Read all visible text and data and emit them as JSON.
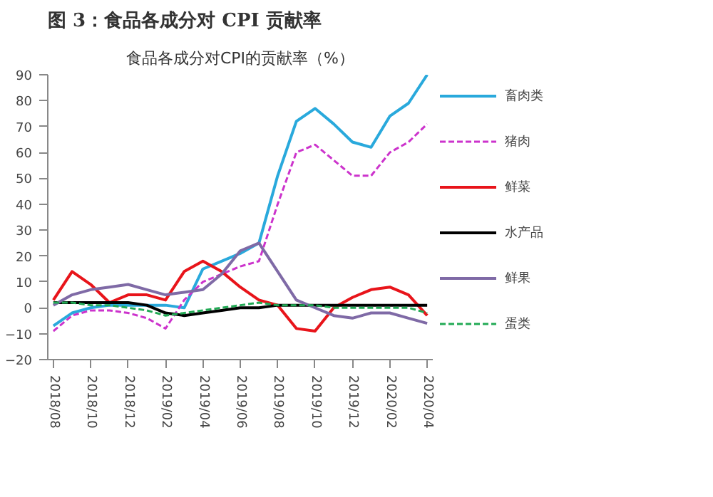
{
  "chart_data": {
    "type": "line",
    "title": "图 3：食品各成分对 CPI 贡献率",
    "subtitle": "食品各成分对CPI的贡献率（%）",
    "categories": [
      "2018/08",
      null,
      "2018/10",
      null,
      "2018/12",
      null,
      "2019/02",
      null,
      "2019/04",
      null,
      "2019/06",
      null,
      "2019/08",
      null,
      "2019/10",
      null,
      "2019/12",
      null,
      "2020/02",
      null,
      "2020/04"
    ],
    "series": [
      {
        "name": "畜肉类",
        "color": "#29a9dc",
        "values": [
          -7,
          -2,
          0,
          1,
          1,
          1,
          1,
          0,
          15,
          18,
          21,
          25,
          51,
          72,
          77,
          71,
          64,
          62,
          74,
          79,
          90
        ]
      },
      {
        "name": "猪肉",
        "color": "#cc33cc",
        "line_style": "dashed",
        "values": [
          -9,
          -3,
          -1,
          -1,
          -2,
          -4,
          -8,
          3,
          10,
          13,
          16,
          18,
          40,
          60,
          63,
          57,
          51,
          51,
          60,
          64,
          71
        ]
      },
      {
        "name": "鲜菜",
        "color": "#e8141a",
        "values": [
          3,
          14,
          9,
          2,
          5,
          5,
          3,
          14,
          18,
          14,
          8,
          3,
          1,
          -8,
          -9,
          0,
          4,
          7,
          8,
          5,
          -3
        ]
      },
      {
        "name": "水产品",
        "color": "#000000",
        "values": [
          2,
          2,
          2,
          2,
          2,
          1,
          -2,
          -3,
          -2,
          -1,
          0,
          0,
          1,
          1,
          1,
          1,
          1,
          1,
          1,
          1,
          1
        ]
      },
      {
        "name": "鲜果",
        "color": "#7f6aa6",
        "values": [
          1,
          5,
          7,
          8,
          9,
          7,
          5,
          6,
          7,
          13,
          22,
          25,
          14,
          3,
          0,
          -3,
          -4,
          -2,
          -2,
          -4,
          -6
        ]
      },
      {
        "name": "蛋类",
        "color": "#22aa55",
        "line_style": "dashed",
        "values": [
          2,
          2,
          1,
          1,
          0,
          -1,
          -3,
          -2,
          -1,
          0,
          1,
          2,
          1,
          1,
          1,
          0,
          0,
          0,
          0,
          0,
          -2
        ]
      }
    ],
    "ylim": [
      -20,
      90
    ],
    "yticks": [
      -20,
      -10,
      0,
      10,
      20,
      30,
      40,
      50,
      60,
      70,
      80,
      90
    ],
    "grid": false,
    "legend": "right",
    "line_style": "solid",
    "marker": "none"
  }
}
